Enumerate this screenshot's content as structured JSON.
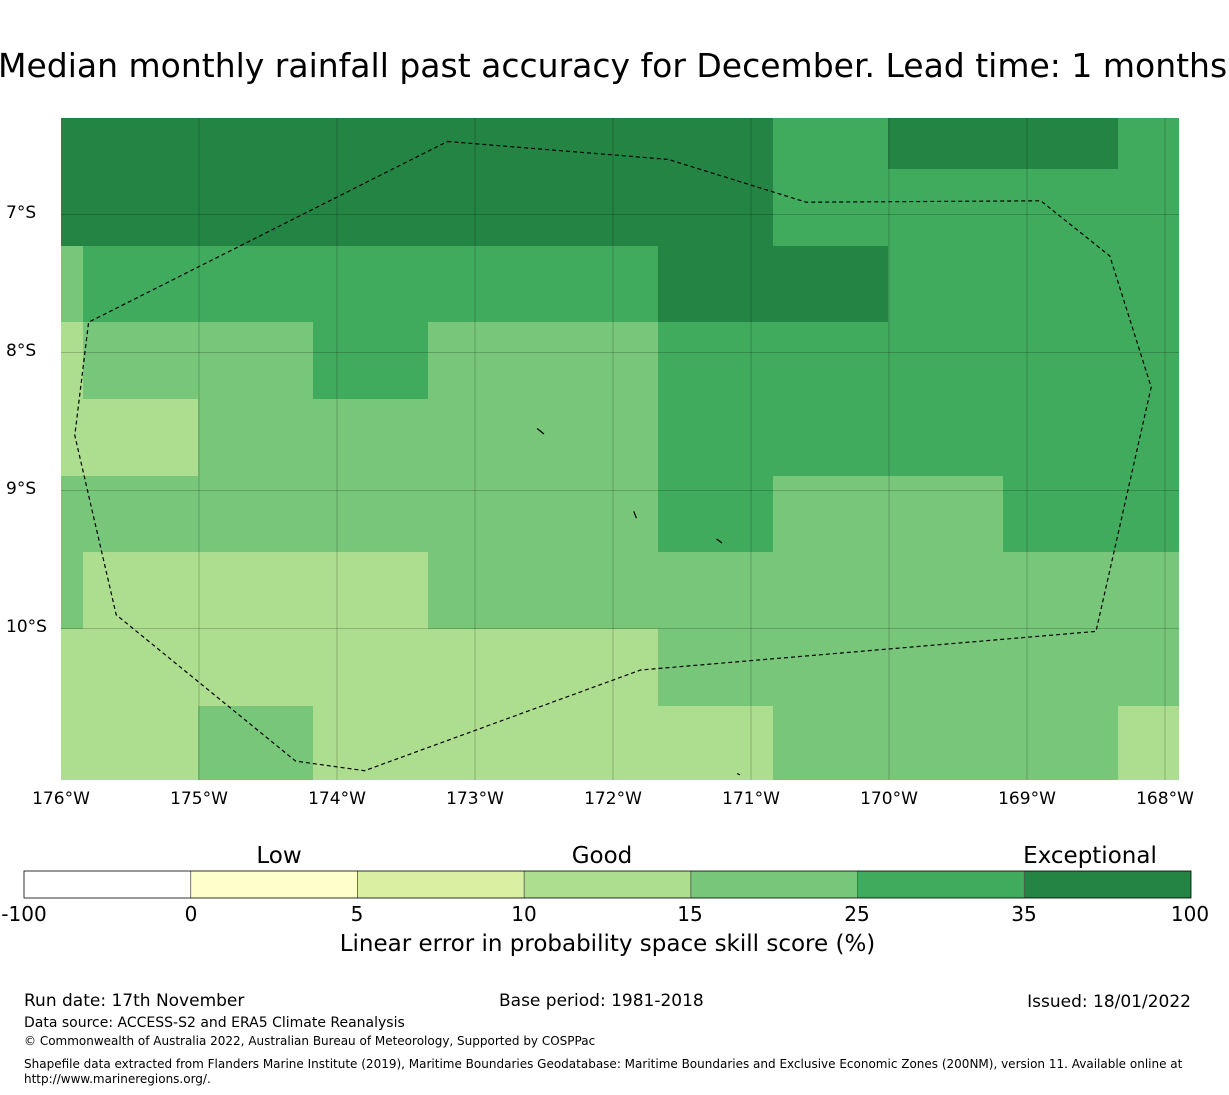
{
  "title": "Median monthly rainfall past accuracy for December. Lead time: 1 months",
  "map": {
    "lat_ticks": [
      "7°S",
      "8°S",
      "9°S",
      "10°S"
    ],
    "lon_ticks": [
      "176°W",
      "175°W",
      "174°W",
      "173°W",
      "172°W",
      "171°W",
      "170°W",
      "169°W",
      "168°W"
    ],
    "lon_range": [
      -176,
      -167.9
    ],
    "lat_range": [
      -11.11,
      -6.3
    ],
    "cell_colors": {
      "c35_100": "#238443",
      "c25_35": "#41ab5d",
      "c15_25": "#78c679",
      "c10_15": "#addd8e"
    },
    "eez_boundary": [
      [
        -173.2,
        -6.47
      ],
      [
        -171.6,
        -6.6
      ],
      [
        -170.6,
        -6.91
      ],
      [
        -168.9,
        -6.9
      ],
      [
        -168.4,
        -7.3
      ],
      [
        -168.1,
        -8.25
      ],
      [
        -168.5,
        -10.02
      ],
      [
        -171.8,
        -10.3
      ],
      [
        -173.8,
        -11.03
      ],
      [
        -174.3,
        -10.96
      ],
      [
        -175.6,
        -9.9
      ],
      [
        -175.9,
        -8.6
      ],
      [
        -175.8,
        -7.78
      ],
      [
        -173.2,
        -6.47
      ]
    ],
    "islands": [
      [
        [
          -172.55,
          -8.55
        ],
        [
          -172.5,
          -8.59
        ]
      ],
      [
        [
          -171.85,
          -9.15
        ],
        [
          -171.83,
          -9.2
        ]
      ],
      [
        [
          -171.25,
          -9.35
        ],
        [
          -171.21,
          -9.38
        ]
      ],
      [
        [
          -171.1,
          -11.05
        ],
        [
          -171.08,
          -11.06
        ]
      ]
    ]
  },
  "colorbar": {
    "categories": [
      "Low",
      "Good",
      "Exceptional"
    ],
    "ticks": [
      "-100",
      "0",
      "5",
      "10",
      "15",
      "25",
      "35",
      "100"
    ],
    "colors": [
      "#ffffff",
      "#ffffcc",
      "#d9f0a3",
      "#addd8e",
      "#78c679",
      "#41ab5d",
      "#238443"
    ],
    "label": "Linear error in probability space skill score (%)"
  },
  "footer": {
    "run_date": "Run date: 17th November",
    "base_period": "Base period: 1981-2018",
    "issued": "Issued: 18/01/2022",
    "data_source": "Data source: ACCESS-S2 and ERA5 Climate Reanalysis",
    "copyright": "© Commonwealth of Australia 2022, Australian Bureau of Meteorology, Supported by COSPPac",
    "shapefile_line1": "Shapefile data extracted from Flanders Marine Institute (2019), Maritime Boundaries Geodatabase: Maritime Boundaries and Exclusive Economic Zones (200NM), version 11. Available online at",
    "shapefile_line2": "http://www.marineregions.org/."
  }
}
